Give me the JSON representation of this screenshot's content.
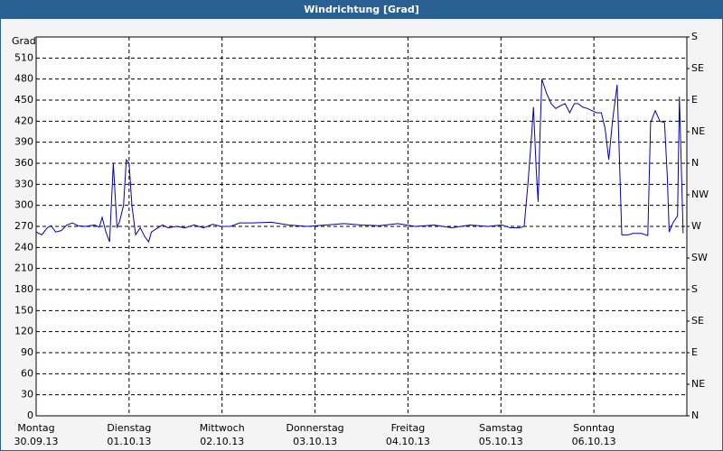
{
  "chart_data": {
    "type": "line",
    "title": "Windrichtung [Grad]",
    "y_label": "Grad",
    "xlim": [
      0,
      7
    ],
    "xticks": [
      {
        "value": 0,
        "label": "Montag"
      },
      {
        "value": 1,
        "label": "Dienstag"
      },
      {
        "value": 2,
        "label": "Mittwoch"
      },
      {
        "value": 3,
        "label": "Donnerstag"
      },
      {
        "value": 4,
        "label": "Freitag"
      },
      {
        "value": 5,
        "label": "Samstag"
      },
      {
        "value": 6,
        "label": "Sonntag"
      }
    ],
    "xtick_dates": [
      "30.09.13",
      "01.10.13",
      "02.10.13",
      "03.10.13",
      "04.10.13",
      "05.10.13",
      "06.10.13"
    ],
    "ylim": [
      0,
      540
    ],
    "yticks": [
      0,
      30,
      60,
      90,
      120,
      150,
      180,
      210,
      240,
      270,
      300,
      330,
      360,
      390,
      420,
      450,
      480,
      510
    ],
    "y2lim": [
      0,
      540
    ],
    "y2ticks": [
      {
        "value": 0,
        "label": "N"
      },
      {
        "value": 45,
        "label": "NE"
      },
      {
        "value": 90,
        "label": "E"
      },
      {
        "value": 135,
        "label": "SE"
      },
      {
        "value": 180,
        "label": "S"
      },
      {
        "value": 225,
        "label": "SW"
      },
      {
        "value": 270,
        "label": "W"
      },
      {
        "value": 315,
        "label": "NW"
      },
      {
        "value": 360,
        "label": "N"
      },
      {
        "value": 405,
        "label": "NE"
      },
      {
        "value": 450,
        "label": "E"
      },
      {
        "value": 495,
        "label": "SE"
      },
      {
        "value": 540,
        "label": "S"
      }
    ],
    "grid": true,
    "series": [
      {
        "name": "Windrichtung",
        "color": "#0000c0",
        "x": [
          0,
          0.06,
          0.12,
          0.16,
          0.21,
          0.27,
          0.33,
          0.39,
          0.45,
          0.53,
          0.63,
          0.68,
          0.71,
          0.75,
          0.79,
          0.83,
          0.87,
          0.9,
          0.94,
          0.97,
          1.0,
          1.03,
          1.07,
          1.12,
          1.17,
          1.21,
          1.24,
          1.31,
          1.36,
          1.42,
          1.51,
          1.6,
          1.7,
          1.8,
          1.9,
          1.99,
          2.09,
          2.19,
          2.33,
          2.53,
          2.72,
          2.92,
          3.11,
          3.31,
          3.5,
          3.69,
          3.89,
          4.08,
          4.28,
          4.47,
          4.67,
          4.86,
          5.01,
          5.1,
          5.2,
          5.25,
          5.29,
          5.33,
          5.35,
          5.38,
          5.4,
          5.42,
          5.44,
          5.49,
          5.54,
          5.59,
          5.64,
          5.69,
          5.74,
          5.79,
          5.83,
          5.88,
          5.93,
          5.98,
          6.03,
          6.08,
          6.12,
          6.16,
          6.2,
          6.25,
          6.3,
          6.37,
          6.42,
          6.51,
          6.58,
          6.61,
          6.66,
          6.71,
          6.76,
          6.79,
          6.81,
          6.85,
          6.9,
          6.92,
          6.96
        ],
        "values": [
          262,
          258,
          268,
          271,
          262,
          264,
          272,
          275,
          271,
          270,
          272,
          269,
          283,
          262,
          248,
          360,
          268,
          278,
          300,
          365,
          360,
          300,
          258,
          268,
          255,
          248,
          262,
          268,
          272,
          268,
          270,
          268,
          272,
          268,
          273,
          270,
          270,
          275,
          275,
          276,
          272,
          270,
          272,
          274,
          272,
          271,
          274,
          270,
          272,
          268,
          272,
          270,
          272,
          268,
          268,
          270,
          330,
          400,
          440,
          350,
          305,
          400,
          480,
          460,
          445,
          438,
          442,
          445,
          432,
          445,
          445,
          440,
          438,
          435,
          432,
          432,
          410,
          365,
          420,
          472,
          258,
          258,
          260,
          260,
          257,
          418,
          435,
          420,
          418,
          340,
          262,
          275,
          285,
          455,
          260
        ]
      }
    ]
  }
}
